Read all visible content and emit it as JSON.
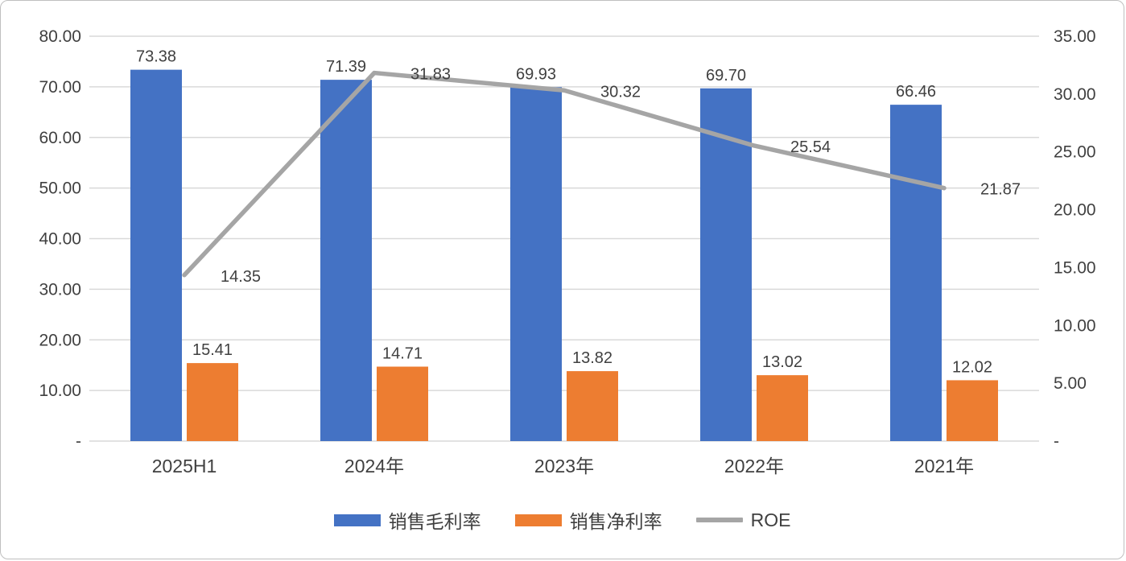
{
  "chart_data": {
    "type": "bar",
    "subtype": "combo-bar-line",
    "title": "",
    "categories": [
      "2025H1",
      "2024年",
      "2023年",
      "2022年",
      "2021年"
    ],
    "bar_series": [
      {
        "name": "销售毛利率",
        "color": "#4472C4",
        "axis": "left",
        "values": [
          73.38,
          71.39,
          69.93,
          69.7,
          66.46
        ]
      },
      {
        "name": "销售净利率",
        "color": "#ED7D31",
        "axis": "left",
        "values": [
          15.41,
          14.71,
          13.82,
          13.02,
          12.02
        ]
      }
    ],
    "line_series": [
      {
        "name": "ROE",
        "color": "#A5A5A5",
        "axis": "right",
        "values": [
          14.35,
          31.83,
          30.32,
          25.54,
          21.87
        ]
      }
    ],
    "left_axis": {
      "min": 0,
      "max": 80,
      "step": 10,
      "tick_labels": [
        "-",
        "10.00",
        "20.00",
        "30.00",
        "40.00",
        "50.00",
        "60.00",
        "70.00",
        "80.00"
      ]
    },
    "right_axis": {
      "min": 0,
      "max": 35,
      "step": 5,
      "tick_labels": [
        "-",
        "5.00",
        "10.00",
        "15.00",
        "20.00",
        "25.00",
        "30.00",
        "35.00"
      ]
    },
    "grid": true,
    "legend_position": "bottom",
    "data_labels": true
  },
  "style": {
    "gridline_color": "#D9D9D9",
    "text_color": "#404040",
    "background": "#FFFFFF",
    "border_color": "#BFBFBF"
  }
}
